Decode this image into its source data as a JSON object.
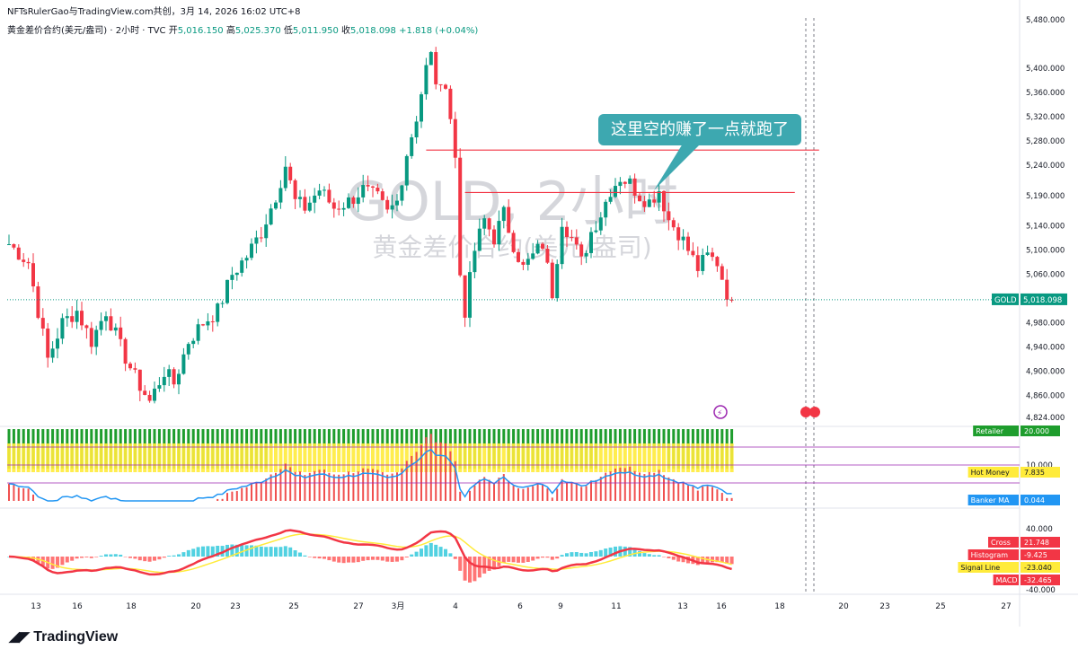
{
  "header": {
    "publisher_line": "NFTsRulerGao与TradingView.com共创，3月 14, 2026 16:02 UTC+8",
    "symbol_line": "黄金差价合约(美元/盎司) · 2小时 · TVC",
    "ohlc": {
      "open_label": "开",
      "open": "5,016.150",
      "high_label": "高",
      "high": "5,025.370",
      "low_label": "低",
      "low": "5,011.950",
      "close_label": "收",
      "close": "5,018.098",
      "change": "+1.818 (+0.04%)"
    }
  },
  "watermark": {
    "main": "GOLD, 2小时",
    "sub": "黄金差价合约(美元/盎司)"
  },
  "annotation": {
    "callout_text": "这里空的赚了一点就跑了"
  },
  "brand": {
    "logo_text": "TradingView"
  },
  "colors": {
    "up": "#089981",
    "down": "#f23645",
    "callout": "#3da8b0",
    "retailer_green": "#1e9d2d",
    "hot_money_yellow": "#ffeb3b",
    "banker_red": "#f0504f",
    "banker_line": "#2196f3",
    "macd_red": "#f23645",
    "macd_green": "#4caf50",
    "signal_yellow": "#ffeb3b",
    "hist_blue": "#2962ff",
    "hist_red": "#ff5252"
  },
  "chart_data": [
    {
      "type": "candlestick",
      "symbol": "GOLD",
      "ylim": [
        4824,
        5480
      ],
      "y_ticks": [
        4824,
        4860,
        4900,
        4940,
        4980,
        5020,
        5060,
        5100,
        5140,
        5190,
        5240,
        5280,
        5320,
        5360,
        5400,
        5480
      ],
      "y_tick_labels": [
        "4,824.000",
        "4,860.000",
        "4,900.000",
        "4,940.000",
        "4,980.000",
        "",
        "5,060.000",
        "5,100.000",
        "5,140.000",
        "5,190.000",
        "5,240.000",
        "5,280.000",
        "5,320.000",
        "5,360.000",
        "5,400.000",
        "5,480.000"
      ],
      "x_tick_labels": [
        "13",
        "16",
        "18",
        "20",
        "23",
        "25",
        "27",
        "3月",
        "4",
        "6",
        "9",
        "11",
        "13",
        "16",
        "18",
        "20",
        "23",
        "25",
        "27"
      ],
      "last_price_label": "GOLD",
      "last_price": "5,018.098",
      "path": [
        [
          0,
          5110
        ],
        [
          4,
          5080
        ],
        [
          8,
          4920
        ],
        [
          11,
          4980
        ],
        [
          14,
          5000
        ],
        [
          17,
          4950
        ],
        [
          20,
          5000
        ],
        [
          23,
          4940
        ],
        [
          26,
          4890
        ],
        [
          29,
          4850
        ],
        [
          32,
          4900
        ],
        [
          34,
          4880
        ],
        [
          37,
          4950
        ],
        [
          40,
          4980
        ],
        [
          43,
          5000
        ],
        [
          46,
          5060
        ],
        [
          49,
          5090
        ],
        [
          52,
          5130
        ],
        [
          55,
          5190
        ],
        [
          57,
          5240
        ],
        [
          59,
          5180
        ],
        [
          61,
          5170
        ],
        [
          64,
          5200
        ],
        [
          67,
          5170
        ],
        [
          70,
          5180
        ],
        [
          73,
          5200
        ],
        [
          76,
          5185
        ],
        [
          78,
          5160
        ],
        [
          80,
          5180
        ],
        [
          82,
          5260
        ],
        [
          84,
          5320
        ],
        [
          86,
          5400
        ],
        [
          87,
          5420
        ],
        [
          88,
          5380
        ],
        [
          89,
          5360
        ],
        [
          90,
          5380
        ],
        [
          91,
          5320
        ],
        [
          92,
          5250
        ],
        [
          93,
          5060
        ],
        [
          94,
          5000
        ],
        [
          96,
          5100
        ],
        [
          98,
          5150
        ],
        [
          100,
          5120
        ],
        [
          102,
          5160
        ],
        [
          104,
          5110
        ],
        [
          106,
          5070
        ],
        [
          108,
          5090
        ],
        [
          110,
          5110
        ],
        [
          112,
          5030
        ],
        [
          114,
          5150
        ],
        [
          116,
          5120
        ],
        [
          118,
          5080
        ],
        [
          120,
          5130
        ],
        [
          122,
          5160
        ],
        [
          124,
          5200
        ],
        [
          126,
          5220
        ],
        [
          128,
          5210
        ],
        [
          130,
          5190
        ],
        [
          132,
          5180
        ],
        [
          134,
          5200
        ],
        [
          136,
          5150
        ],
        [
          138,
          5130
        ],
        [
          140,
          5100
        ],
        [
          142,
          5070
        ],
        [
          144,
          5090
        ],
        [
          146,
          5080
        ],
        [
          148,
          5030
        ],
        [
          149,
          5018
        ]
      ],
      "horizontal_lines": [
        {
          "price": 5265,
          "from_bar": 86,
          "to_bar": 167
        },
        {
          "price": 5195,
          "from_bar": 94,
          "to_bar": 162
        }
      ]
    },
    {
      "type": "bar",
      "name": "Retailer / Hot Money / Banker MA indicator",
      "labels": [
        {
          "name": "Retailer",
          "value": "20.000"
        },
        {
          "name": "Hot Money",
          "value": "7.835"
        },
        {
          "name": "Banker MA",
          "value": "0.044"
        }
      ],
      "tick_labels": [
        "10.000"
      ],
      "levels": [
        20,
        10,
        7.835
      ]
    },
    {
      "type": "line",
      "name": "MACD",
      "tick_labels": [
        "40.000",
        "-40.000"
      ],
      "labels": [
        {
          "name": "Cross",
          "value": "21.748"
        },
        {
          "name": "Histogram",
          "value": "-9.425"
        },
        {
          "name": "Signal Line",
          "value": "-23.040"
        },
        {
          "name": "MACD",
          "value": "-32.465"
        }
      ]
    }
  ]
}
